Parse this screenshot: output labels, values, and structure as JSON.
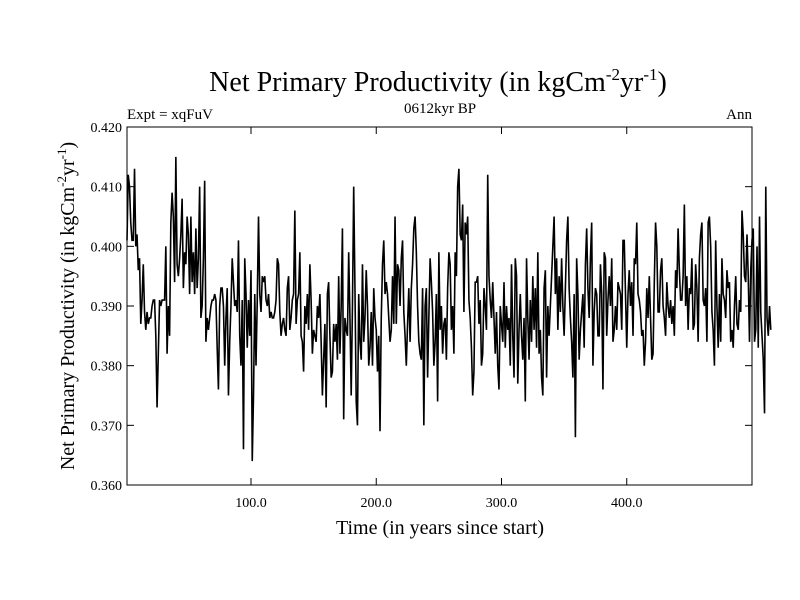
{
  "chart_data": {
    "type": "line",
    "title_main": "Net Primary Productivity (in kgCm",
    "title_sup1": "-2",
    "title_mid": "yr",
    "title_sup2": "-1",
    "title_end": ")",
    "subtitle_left": "Expt = xqFuV",
    "subtitle_center": "0612kyr BP",
    "subtitle_right": "Ann",
    "xlabel": "Time (in years since start)",
    "ylabel_main": "Net Primary Productivity (in kgCm",
    "ylabel_sup1": "-2",
    "ylabel_mid": "yr",
    "ylabel_sup2": "-1",
    "ylabel_end": ")",
    "xlim": [
      1,
      500
    ],
    "ylim": [
      0.36,
      0.42
    ],
    "x_ticks": [
      {
        "value": 100,
        "label": "100.0"
      },
      {
        "value": 200,
        "label": "200.0"
      },
      {
        "value": 300,
        "label": "300.0"
      },
      {
        "value": 400,
        "label": "400.0"
      }
    ],
    "y_ticks": [
      {
        "value": 0.36,
        "label": "0.360"
      },
      {
        "value": 0.37,
        "label": "0.370"
      },
      {
        "value": 0.38,
        "label": "0.380"
      },
      {
        "value": 0.39,
        "label": "0.390"
      },
      {
        "value": 0.4,
        "label": "0.400"
      },
      {
        "value": 0.41,
        "label": "0.410"
      },
      {
        "value": 0.42,
        "label": "0.420"
      }
    ],
    "series": [
      {
        "name": "Net Primary Productivity",
        "x_start": 1,
        "x_step": 1,
        "values": [
          0.401,
          0.412,
          0.41,
          0.404,
          0.401,
          0.401,
          0.413,
          0.4,
          0.402,
          0.396,
          0.398,
          0.387,
          0.391,
          0.397,
          0.389,
          0.386,
          0.389,
          0.387,
          0.388,
          0.388,
          0.39,
          0.391,
          0.391,
          0.385,
          0.373,
          0.382,
          0.391,
          0.39,
          0.391,
          0.391,
          0.391,
          0.4,
          0.382,
          0.39,
          0.385,
          0.404,
          0.409,
          0.405,
          0.394,
          0.415,
          0.397,
          0.395,
          0.398,
          0.402,
          0.408,
          0.393,
          0.399,
          0.397,
          0.405,
          0.402,
          0.392,
          0.405,
          0.394,
          0.399,
          0.392,
          0.403,
          0.393,
          0.398,
          0.41,
          0.388,
          0.39,
          0.398,
          0.411,
          0.384,
          0.388,
          0.386,
          0.388,
          0.39,
          0.391,
          0.391,
          0.392,
          0.391,
          0.383,
          0.376,
          0.39,
          0.393,
          0.393,
          0.39,
          0.38,
          0.388,
          0.393,
          0.375,
          0.384,
          0.39,
          0.398,
          0.394,
          0.39,
          0.391,
          0.389,
          0.401,
          0.385,
          0.38,
          0.391,
          0.366,
          0.398,
          0.392,
          0.383,
          0.391,
          0.385,
          0.396,
          0.364,
          0.375,
          0.392,
          0.38,
          0.391,
          0.405,
          0.392,
          0.389,
          0.395,
          0.394,
          0.395,
          0.391,
          0.39,
          0.392,
          0.388,
          0.389,
          0.388,
          0.388,
          0.389,
          0.391,
          0.398,
          0.397,
          0.389,
          0.385,
          0.387,
          0.388,
          0.386,
          0.385,
          0.393,
          0.395,
          0.386,
          0.388,
          0.391,
          0.392,
          0.406,
          0.387,
          0.391,
          0.392,
          0.399,
          0.385,
          0.384,
          0.379,
          0.39,
          0.387,
          0.392,
          0.386,
          0.397,
          0.391,
          0.382,
          0.386,
          0.385,
          0.384,
          0.39,
          0.388,
          0.392,
          0.384,
          0.375,
          0.381,
          0.387,
          0.373,
          0.392,
          0.394,
          0.385,
          0.378,
          0.379,
          0.387,
          0.384,
          0.387,
          0.381,
          0.395,
          0.382,
          0.39,
          0.403,
          0.371,
          0.388,
          0.386,
          0.385,
          0.399,
          0.388,
          0.375,
          0.39,
          0.41,
          0.393,
          0.374,
          0.37,
          0.392,
          0.384,
          0.381,
          0.397,
          0.384,
          0.388,
          0.396,
          0.39,
          0.38,
          0.383,
          0.389,
          0.38,
          0.393,
          0.388,
          0.386,
          0.379,
          0.385,
          0.369,
          0.388,
          0.397,
          0.401,
          0.392,
          0.394,
          0.392,
          0.388,
          0.384,
          0.386,
          0.395,
          0.387,
          0.405,
          0.387,
          0.397,
          0.396,
          0.39,
          0.398,
          0.401,
          0.389,
          0.385,
          0.38,
          0.387,
          0.393,
          0.384,
          0.393,
          0.397,
          0.403,
          0.405,
          0.399,
          0.39,
          0.384,
          0.382,
          0.381,
          0.393,
          0.37,
          0.39,
          0.393,
          0.378,
          0.388,
          0.398,
          0.394,
          0.389,
          0.38,
          0.384,
          0.392,
          0.374,
          0.399,
          0.386,
          0.39,
          0.382,
          0.387,
          0.388,
          0.381,
          0.393,
          0.399,
          0.397,
          0.386,
          0.39,
          0.382,
          0.399,
          0.395,
          0.41,
          0.413,
          0.402,
          0.401,
          0.407,
          0.389,
          0.404,
          0.402,
          0.405,
          0.391,
          0.388,
          0.383,
          0.375,
          0.379,
          0.394,
          0.394,
          0.395,
          0.387,
          0.391,
          0.38,
          0.382,
          0.393,
          0.39,
          0.386,
          0.412,
          0.395,
          0.391,
          0.388,
          0.394,
          0.388,
          0.382,
          0.389,
          0.38,
          0.376,
          0.39,
          0.387,
          0.384,
          0.394,
          0.383,
          0.39,
          0.386,
          0.388,
          0.38,
          0.397,
          0.385,
          0.378,
          0.398,
          0.395,
          0.377,
          0.386,
          0.392,
          0.385,
          0.381,
          0.388,
          0.374,
          0.398,
          0.388,
          0.381,
          0.391,
          0.384,
          0.395,
          0.386,
          0.393,
          0.383,
          0.399,
          0.382,
          0.386,
          0.378,
          0.375,
          0.393,
          0.396,
          0.378,
          0.39,
          0.385,
          0.39,
          0.395,
          0.4,
          0.405,
          0.392,
          0.398,
          0.386,
          0.395,
          0.389,
          0.398,
          0.39,
          0.385,
          0.393,
          0.401,
          0.405,
          0.393,
          0.388,
          0.384,
          0.378,
          0.392,
          0.368,
          0.398,
          0.392,
          0.381,
          0.386,
          0.389,
          0.392,
          0.383,
          0.397,
          0.403,
          0.393,
          0.388,
          0.398,
          0.404,
          0.38,
          0.389,
          0.393,
          0.392,
          0.385,
          0.385,
          0.397,
          0.392,
          0.376,
          0.399,
          0.398,
          0.385,
          0.391,
          0.395,
          0.39,
          0.398,
          0.384,
          0.386,
          0.39,
          0.386,
          0.394,
          0.393,
          0.392,
          0.386,
          0.401,
          0.401,
          0.392,
          0.383,
          0.392,
          0.396,
          0.39,
          0.394,
          0.385,
          0.398,
          0.397,
          0.404,
          0.392,
          0.391,
          0.389,
          0.385,
          0.386,
          0.38,
          0.384,
          0.393,
          0.388,
          0.395,
          0.388,
          0.381,
          0.382,
          0.394,
          0.404,
          0.4,
          0.389,
          0.389,
          0.396,
          0.398,
          0.39,
          0.388,
          0.385,
          0.394,
          0.39,
          0.388,
          0.391,
          0.387,
          0.39,
          0.385,
          0.396,
          0.393,
          0.403,
          0.396,
          0.391,
          0.391,
          0.395,
          0.407,
          0.39,
          0.395,
          0.386,
          0.393,
          0.392,
          0.398,
          0.386,
          0.387,
          0.397,
          0.393,
          0.384,
          0.398,
          0.402,
          0.404,
          0.391,
          0.39,
          0.393,
          0.384,
          0.404,
          0.405,
          0.4,
          0.389,
          0.386,
          0.38,
          0.401,
          0.39,
          0.383,
          0.392,
          0.384,
          0.398,
          0.392,
          0.391,
          0.388,
          0.396,
          0.393,
          0.394,
          0.384,
          0.386,
          0.383,
          0.39,
          0.395,
          0.387,
          0.386,
          0.391,
          0.389,
          0.406,
          0.402,
          0.395,
          0.394,
          0.402,
          0.395,
          0.384,
          0.396,
          0.401,
          0.403,
          0.384,
          0.386,
          0.4,
          0.383,
          0.405,
          0.389,
          0.385,
          0.381,
          0.372,
          0.41,
          0.388,
          0.385,
          0.39,
          0.386
        ]
      }
    ],
    "line_color": "#000000"
  }
}
